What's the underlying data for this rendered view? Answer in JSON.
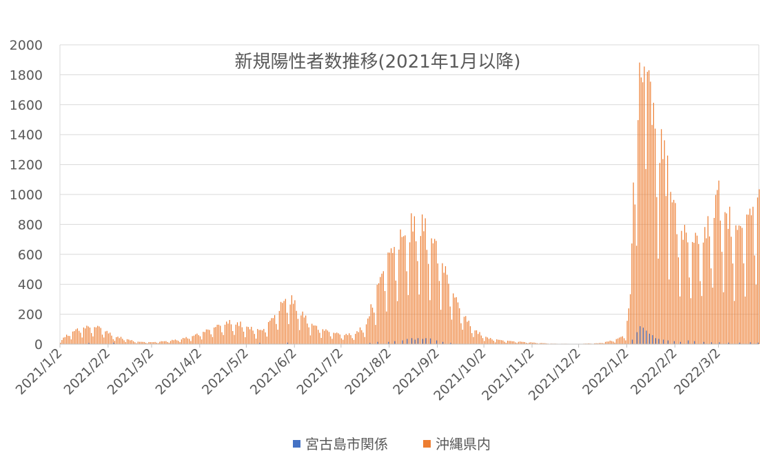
{
  "chart_data": {
    "type": "bar",
    "title": "新規陽性者数推移(2021年1月以降)",
    "xlabel": "",
    "ylabel": "",
    "ylim": [
      0,
      2000
    ],
    "yticks": [
      "0",
      "200",
      "400",
      "600",
      "800",
      "1000",
      "1200",
      "1400",
      "1600",
      "1800",
      "2000"
    ],
    "grid": true,
    "legend_position": "bottom",
    "x_start": "2021/1/2",
    "x_end": "2022/3/28",
    "x_ticks": [
      "2021/1/2",
      "2021/2/2",
      "2021/3/2",
      "2021/4/2",
      "2021/5/2",
      "2021/6/2",
      "2021/7/2",
      "2021/8/2",
      "2021/9/2",
      "2021/10/2",
      "2021/11/2",
      "2021/12/2",
      "2022/1/2",
      "2022/2/2",
      "2022/3/2"
    ],
    "colors": {
      "miyakojima": "#4472C4",
      "okinawa": "#ED7D31",
      "grid": "#D9D9D9",
      "text": "#595959"
    },
    "series": [
      {
        "name": "宮古島市関係",
        "key": "miyakojima",
        "points": [
          [
            "2021/1/20",
            8
          ],
          [
            "2021/2/5",
            10
          ],
          [
            "2021/5/10",
            8
          ],
          [
            "2021/5/28",
            10
          ],
          [
            "2021/7/20",
            8
          ],
          [
            "2021/7/25",
            15
          ],
          [
            "2021/8/1",
            15
          ],
          [
            "2021/8/5",
            20
          ],
          [
            "2021/8/10",
            25
          ],
          [
            "2021/8/13",
            35
          ],
          [
            "2021/8/16",
            40
          ],
          [
            "2021/8/18",
            30
          ],
          [
            "2021/8/20",
            40
          ],
          [
            "2021/8/23",
            35
          ],
          [
            "2021/8/25",
            40
          ],
          [
            "2021/8/28",
            38
          ],
          [
            "2021/9/1",
            25
          ],
          [
            "2021/9/5",
            15
          ],
          [
            "2021/9/10",
            8
          ],
          [
            "2022/1/5",
            30
          ],
          [
            "2022/1/8",
            80
          ],
          [
            "2022/1/10",
            120
          ],
          [
            "2022/1/12",
            110
          ],
          [
            "2022/1/14",
            90
          ],
          [
            "2022/1/16",
            70
          ],
          [
            "2022/1/18",
            60
          ],
          [
            "2022/1/20",
            40
          ],
          [
            "2022/1/22",
            35
          ],
          [
            "2022/1/25",
            30
          ],
          [
            "2022/1/28",
            25
          ],
          [
            "2022/2/1",
            20
          ],
          [
            "2022/2/5",
            15
          ],
          [
            "2022/2/10",
            25
          ],
          [
            "2022/2/14",
            20
          ],
          [
            "2022/2/20",
            15
          ],
          [
            "2022/2/25",
            12
          ],
          [
            "2022/3/2",
            12
          ],
          [
            "2022/3/8",
            10
          ],
          [
            "2022/3/15",
            10
          ],
          [
            "2022/3/22",
            12
          ],
          [
            "2022/3/27",
            10
          ]
        ]
      },
      {
        "name": "沖縄県内",
        "key": "okinawa",
        "keyframes": [
          [
            "2021/1/2",
            20
          ],
          [
            "2021/1/8",
            70
          ],
          [
            "2021/1/15",
            100
          ],
          [
            "2021/1/22",
            110
          ],
          [
            "2021/1/28",
            105
          ],
          [
            "2021/2/5",
            50
          ],
          [
            "2021/2/12",
            35
          ],
          [
            "2021/2/20",
            15
          ],
          [
            "2021/3/2",
            12
          ],
          [
            "2021/3/12",
            20
          ],
          [
            "2021/3/20",
            30
          ],
          [
            "2021/3/28",
            50
          ],
          [
            "2021/4/5",
            80
          ],
          [
            "2021/4/12",
            110
          ],
          [
            "2021/4/20",
            135
          ],
          [
            "2021/4/27",
            125
          ],
          [
            "2021/5/5",
            95
          ],
          [
            "2021/5/12",
            85
          ],
          [
            "2021/5/20",
            180
          ],
          [
            "2021/5/28",
            300
          ],
          [
            "2021/6/2",
            250
          ],
          [
            "2021/6/8",
            170
          ],
          [
            "2021/6/15",
            110
          ],
          [
            "2021/6/22",
            85
          ],
          [
            "2021/7/2",
            60
          ],
          [
            "2021/7/10",
            60
          ],
          [
            "2021/7/18",
            120
          ],
          [
            "2021/7/25",
            350
          ],
          [
            "2021/8/1",
            550
          ],
          [
            "2021/8/8",
            640
          ],
          [
            "2021/8/15",
            720
          ],
          [
            "2021/8/22",
            740
          ],
          [
            "2021/8/28",
            680
          ],
          [
            "2021/9/2",
            580
          ],
          [
            "2021/9/8",
            420
          ],
          [
            "2021/9/15",
            250
          ],
          [
            "2021/9/22",
            130
          ],
          [
            "2021/9/28",
            70
          ],
          [
            "2021/10/5",
            35
          ],
          [
            "2021/10/15",
            22
          ],
          [
            "2021/10/25",
            15
          ],
          [
            "2021/11/5",
            8
          ],
          [
            "2021/11/15",
            3
          ],
          [
            "2021/12/1",
            2
          ],
          [
            "2021/12/15",
            6
          ],
          [
            "2021/12/25",
            25
          ],
          [
            "2022/1/1",
            60
          ],
          [
            "2022/1/4",
            300
          ],
          [
            "2022/1/7",
            1350
          ],
          [
            "2022/1/10",
            1600
          ],
          [
            "2022/1/13",
            1750
          ],
          [
            "2022/1/17",
            1450
          ],
          [
            "2022/1/21",
            1300
          ],
          [
            "2022/1/26",
            1150
          ],
          [
            "2022/2/1",
            850
          ],
          [
            "2022/2/6",
            700
          ],
          [
            "2022/2/12",
            650
          ],
          [
            "2022/2/18",
            650
          ],
          [
            "2022/2/24",
            720
          ],
          [
            "2022/3/1",
            900
          ],
          [
            "2022/3/7",
            780
          ],
          [
            "2022/3/13",
            700
          ],
          [
            "2022/3/19",
            760
          ],
          [
            "2022/3/24",
            850
          ],
          [
            "2022/3/28",
            880
          ]
        ],
        "peaks": [
          [
            "2022/1/12",
            1750
          ],
          [
            "2022/1/15",
            1820
          ],
          [
            "2022/1/16",
            1830
          ],
          [
            "2022/1/20",
            1440
          ],
          [
            "2022/1/28",
            1260
          ],
          [
            "2022/3/1",
            1030
          ],
          [
            "2022/3/27",
            980
          ]
        ]
      }
    ]
  }
}
